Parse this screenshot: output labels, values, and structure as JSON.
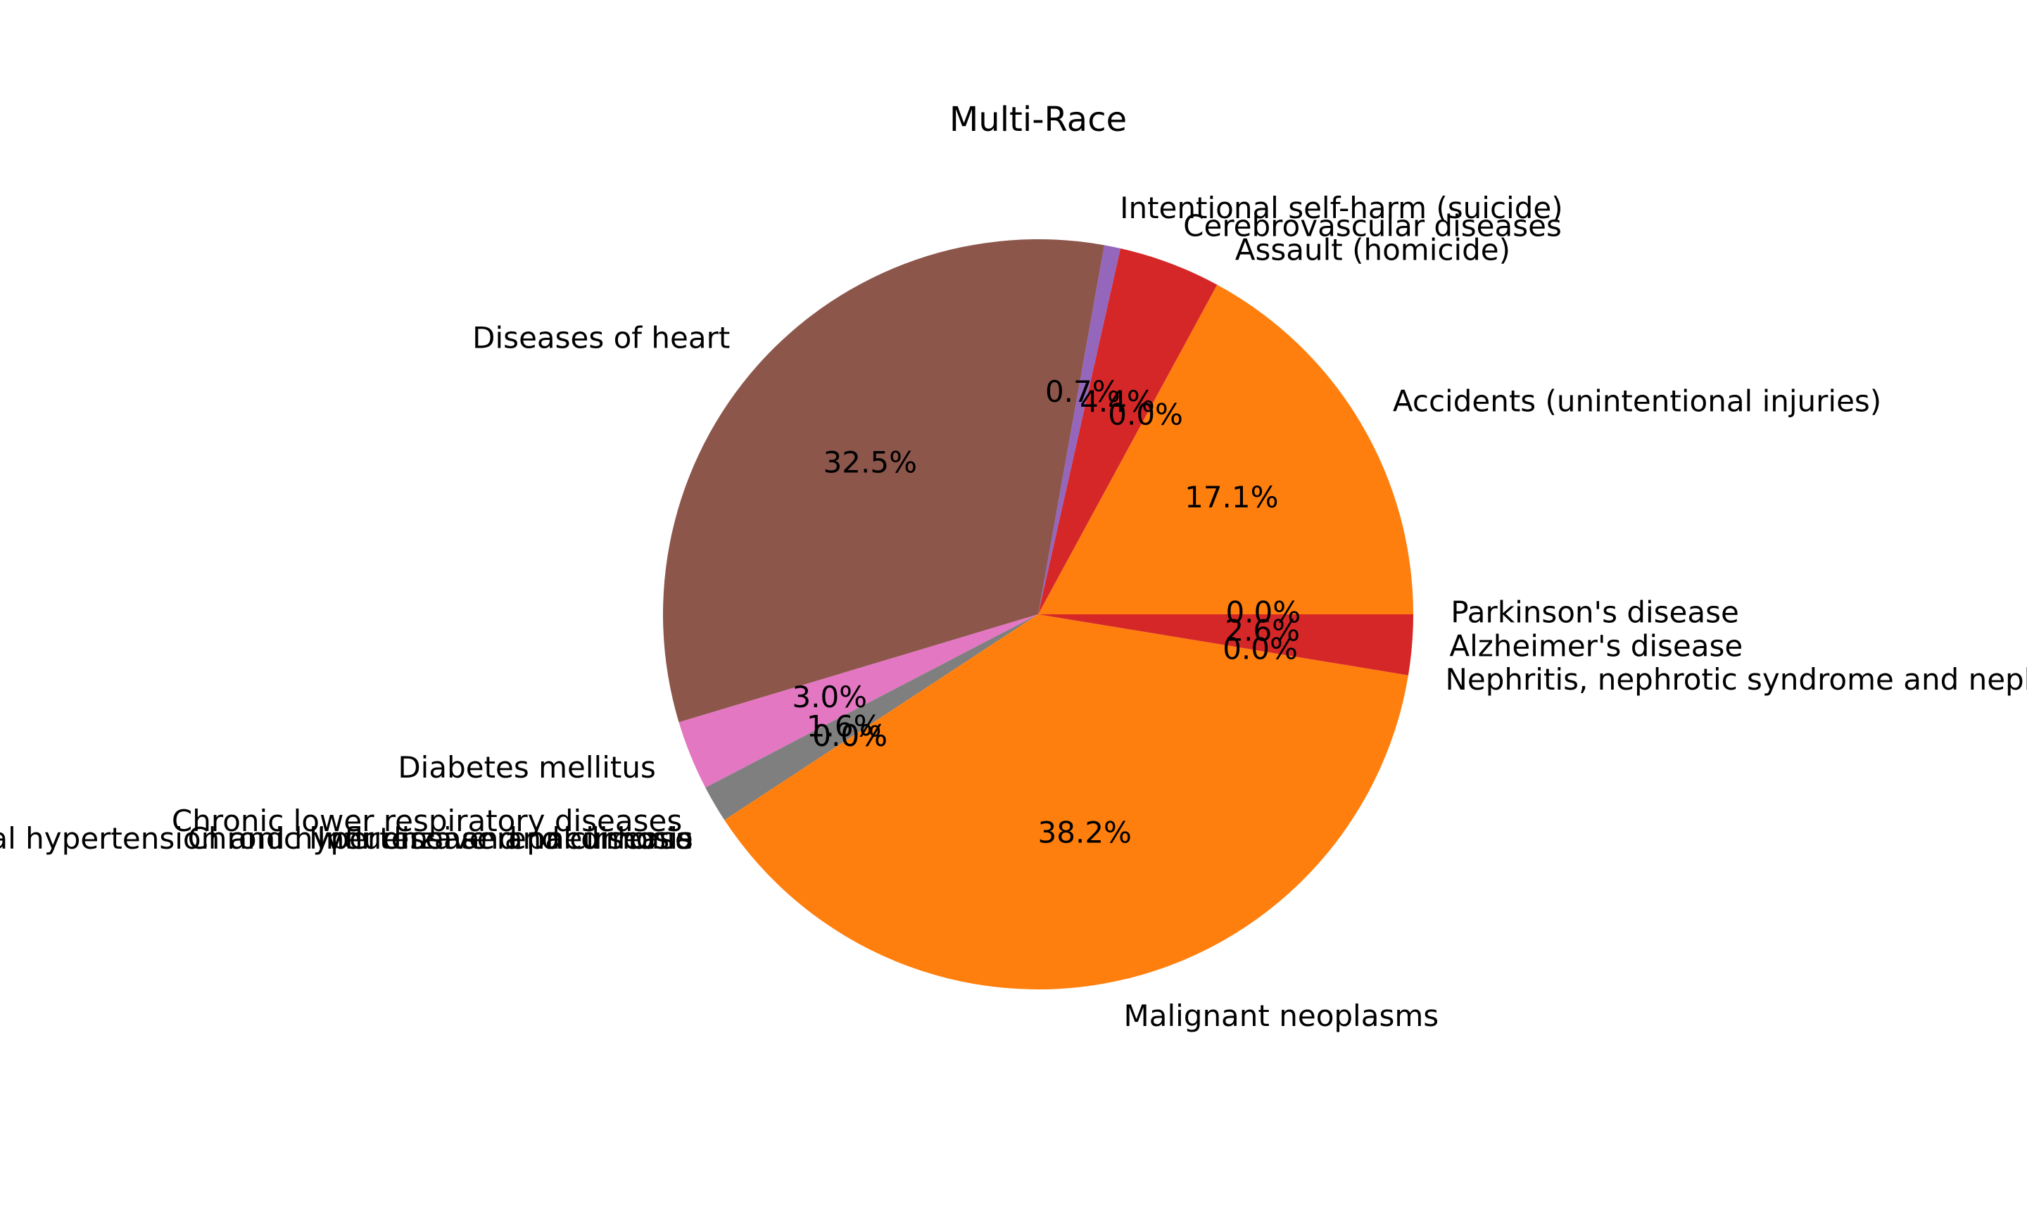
{
  "chart_data": {
    "type": "pie",
    "title": "Multi-Race",
    "legend": "none",
    "grid": false,
    "slices": [
      {
        "label": "Parkinson's disease",
        "value": 0.0,
        "pct_label": "0.0%",
        "color": "#1f77b4"
      },
      {
        "label": "Accidents (unintentional injuries)",
        "value": 17.1,
        "pct_label": "17.1%",
        "color": "#ff7f0e"
      },
      {
        "label": "Assault (homicide)",
        "value": 0.0,
        "pct_label": "0.0%",
        "color": "#2ca02c"
      },
      {
        "label": "Cerebrovascular diseases",
        "value": 4.4,
        "pct_label": "4.4%",
        "color": "#d62728"
      },
      {
        "label": "Intentional self-harm (suicide)",
        "value": 0.7,
        "pct_label": "0.7%",
        "color": "#9467bd"
      },
      {
        "label": "Diseases of heart",
        "value": 32.5,
        "pct_label": "32.5%",
        "color": "#8c564b"
      },
      {
        "label": "Diabetes mellitus",
        "value": 3.0,
        "pct_label": "3.0%",
        "color": "#e377c2"
      },
      {
        "label": "Chronic lower respiratory diseases",
        "value": 1.6,
        "pct_label": "1.6%",
        "color": "#7f7f7f"
      },
      {
        "label": "Influenza and pneumonia",
        "value": 0.0,
        "pct_label": "0.0%",
        "color": "#bcbd22"
      },
      {
        "label": "Chronic liver disease and cirrhosis",
        "value": 0.0,
        "pct_label": "0.0%",
        "color": "#17becf"
      },
      {
        "label": "Essential hypertension and hypertensive renal disease",
        "value": 0.0,
        "pct_label": "0.0%",
        "color": "#1f77b4"
      },
      {
        "label": "Malignant neoplasms",
        "value": 38.2,
        "pct_label": "38.2%",
        "color": "#ff7f0e"
      },
      {
        "label": "Nephritis, nephrotic syndrome and nephrosis",
        "value": 0.0,
        "pct_label": "0.0%",
        "color": "#2ca02c"
      },
      {
        "label": "Alzheimer's disease",
        "value": 2.6,
        "pct_label": "2.6%",
        "color": "#d62728"
      }
    ]
  }
}
